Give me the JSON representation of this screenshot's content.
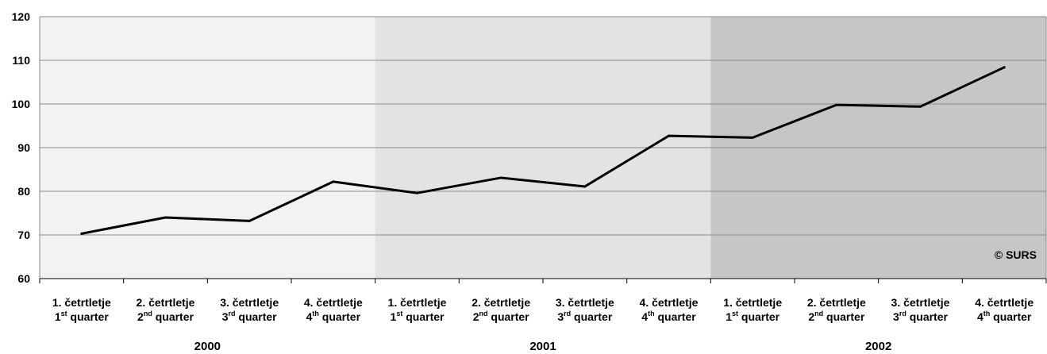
{
  "chart_data": {
    "type": "line",
    "title": "",
    "xlabel": "",
    "ylabel": "",
    "ylim": [
      60,
      120
    ],
    "yticks": [
      "60",
      "70",
      "80",
      "90",
      "100",
      "110",
      "120"
    ],
    "grid": true,
    "credit": "© SURS",
    "categories": [
      {
        "line1": "1. četrtletje",
        "num": "1",
        "sup": "st",
        "word": "quarter"
      },
      {
        "line1": "2. četrtletje",
        "num": "2",
        "sup": "nd",
        "word": "quarter"
      },
      {
        "line1": "3. četrtletje",
        "num": "3",
        "sup": "rd",
        "word": "quarter"
      },
      {
        "line1": "4. četrtletje",
        "num": "4",
        "sup": "th",
        "word": "quarter"
      },
      {
        "line1": "1. četrtletje",
        "num": "1",
        "sup": "st",
        "word": "quarter"
      },
      {
        "line1": "2. četrtletje",
        "num": "2",
        "sup": "nd",
        "word": "quarter"
      },
      {
        "line1": "3. četrtletje",
        "num": "3",
        "sup": "rd",
        "word": "quarter"
      },
      {
        "line1": "4. četrtletje",
        "num": "4",
        "sup": "th",
        "word": "quarter"
      },
      {
        "line1": "1. četrtletje",
        "num": "1",
        "sup": "st",
        "word": "quarter"
      },
      {
        "line1": "2. četrtletje",
        "num": "2",
        "sup": "nd",
        "word": "quarter"
      },
      {
        "line1": "3. četrtletje",
        "num": "3",
        "sup": "rd",
        "word": "quarter"
      },
      {
        "line1": "4. četrtletje",
        "num": "4",
        "sup": "th",
        "word": "quarter"
      }
    ],
    "groups": [
      {
        "label": "2000",
        "start": 0,
        "end": 3,
        "color": "#f2f2f2"
      },
      {
        "label": "2001",
        "start": 4,
        "end": 7,
        "color": "#e3e3e3"
      },
      {
        "label": "2002",
        "start": 8,
        "end": 11,
        "color": "#c6c6c6"
      }
    ],
    "series": [
      {
        "values": [
          70.3,
          74.0,
          73.2,
          82.2,
          79.6,
          83.1,
          81.1,
          92.7,
          92.3,
          99.8,
          99.4,
          108.4
        ],
        "color": "#000000"
      }
    ]
  }
}
